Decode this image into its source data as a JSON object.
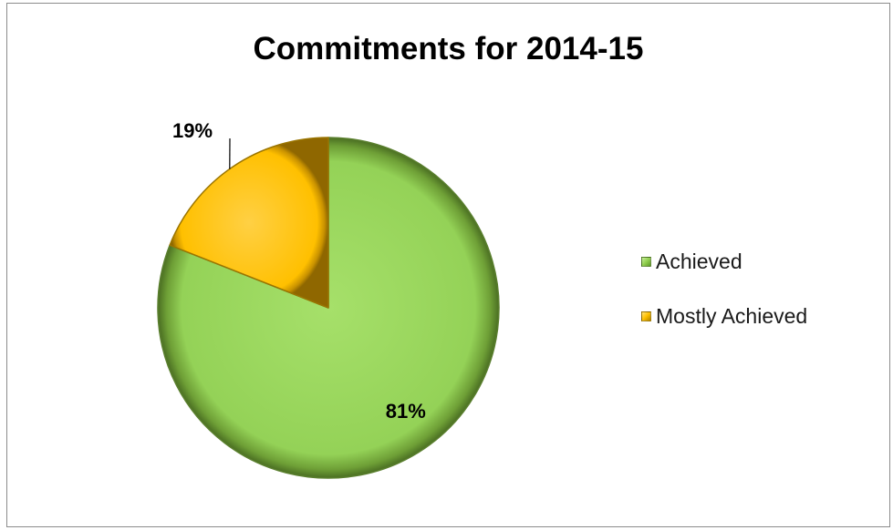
{
  "chart_data": {
    "type": "pie",
    "title": "Commitments for 2014-15",
    "slices": [
      {
        "label": "Achieved",
        "value": 81,
        "data_label": "81%",
        "color": "#92D050"
      },
      {
        "label": "Mostly Achieved",
        "value": 19,
        "data_label": "19%",
        "color": "#FFC000"
      }
    ],
    "legend_position": "right",
    "style": "3d-bevel"
  }
}
